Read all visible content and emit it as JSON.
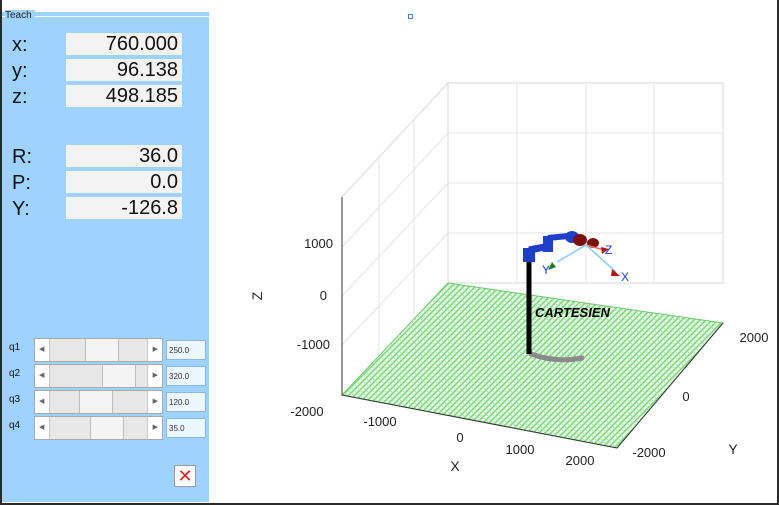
{
  "window": {
    "close_symbol": "✕"
  },
  "teach_panel": {
    "title": "Teach",
    "position": [
      {
        "label": "x:",
        "value": "760.000"
      },
      {
        "label": "y:",
        "value": "96.138"
      },
      {
        "label": "z:",
        "value": "498.185"
      }
    ],
    "orientation": [
      {
        "label": "R:",
        "value": "36.0"
      },
      {
        "label": "P:",
        "value": "0.0"
      },
      {
        "label": "Y:",
        "value": "-126.8"
      }
    ],
    "joints": [
      {
        "label": "q1",
        "value": "250.0",
        "thumb_fraction": 0.55
      },
      {
        "label": "q2",
        "value": "320.0",
        "thumb_fraction": 0.83
      },
      {
        "label": "q3",
        "value": "120.0",
        "thumb_fraction": 0.46
      },
      {
        "label": "q4",
        "value": "35.0",
        "thumb_fraction": 0.64
      }
    ]
  },
  "plot": {
    "z_label": "Z",
    "x_label": "X",
    "y_label": "Y",
    "z_ticks": [
      "1000",
      "0",
      "-1000"
    ],
    "x_ticks": [
      "-2000",
      "-1000",
      "0",
      "1000",
      "2000"
    ],
    "y_ticks": [
      "2000",
      "0",
      "-2000"
    ],
    "annotation": "CARTESIEN",
    "frame_axes": {
      "x": "X",
      "y": "Y",
      "z": "Z"
    },
    "colors": {
      "floor": "#8fe08f",
      "arm_link": "#000000",
      "arm_joint": "#1f3fc8",
      "arm_joint_dark": "#7a1010",
      "axis_x": "#1f3fd8",
      "axis_y": "#1f3fd8",
      "axis_z": "#1f3fd8",
      "shadow": "#8a8a8a"
    }
  }
}
